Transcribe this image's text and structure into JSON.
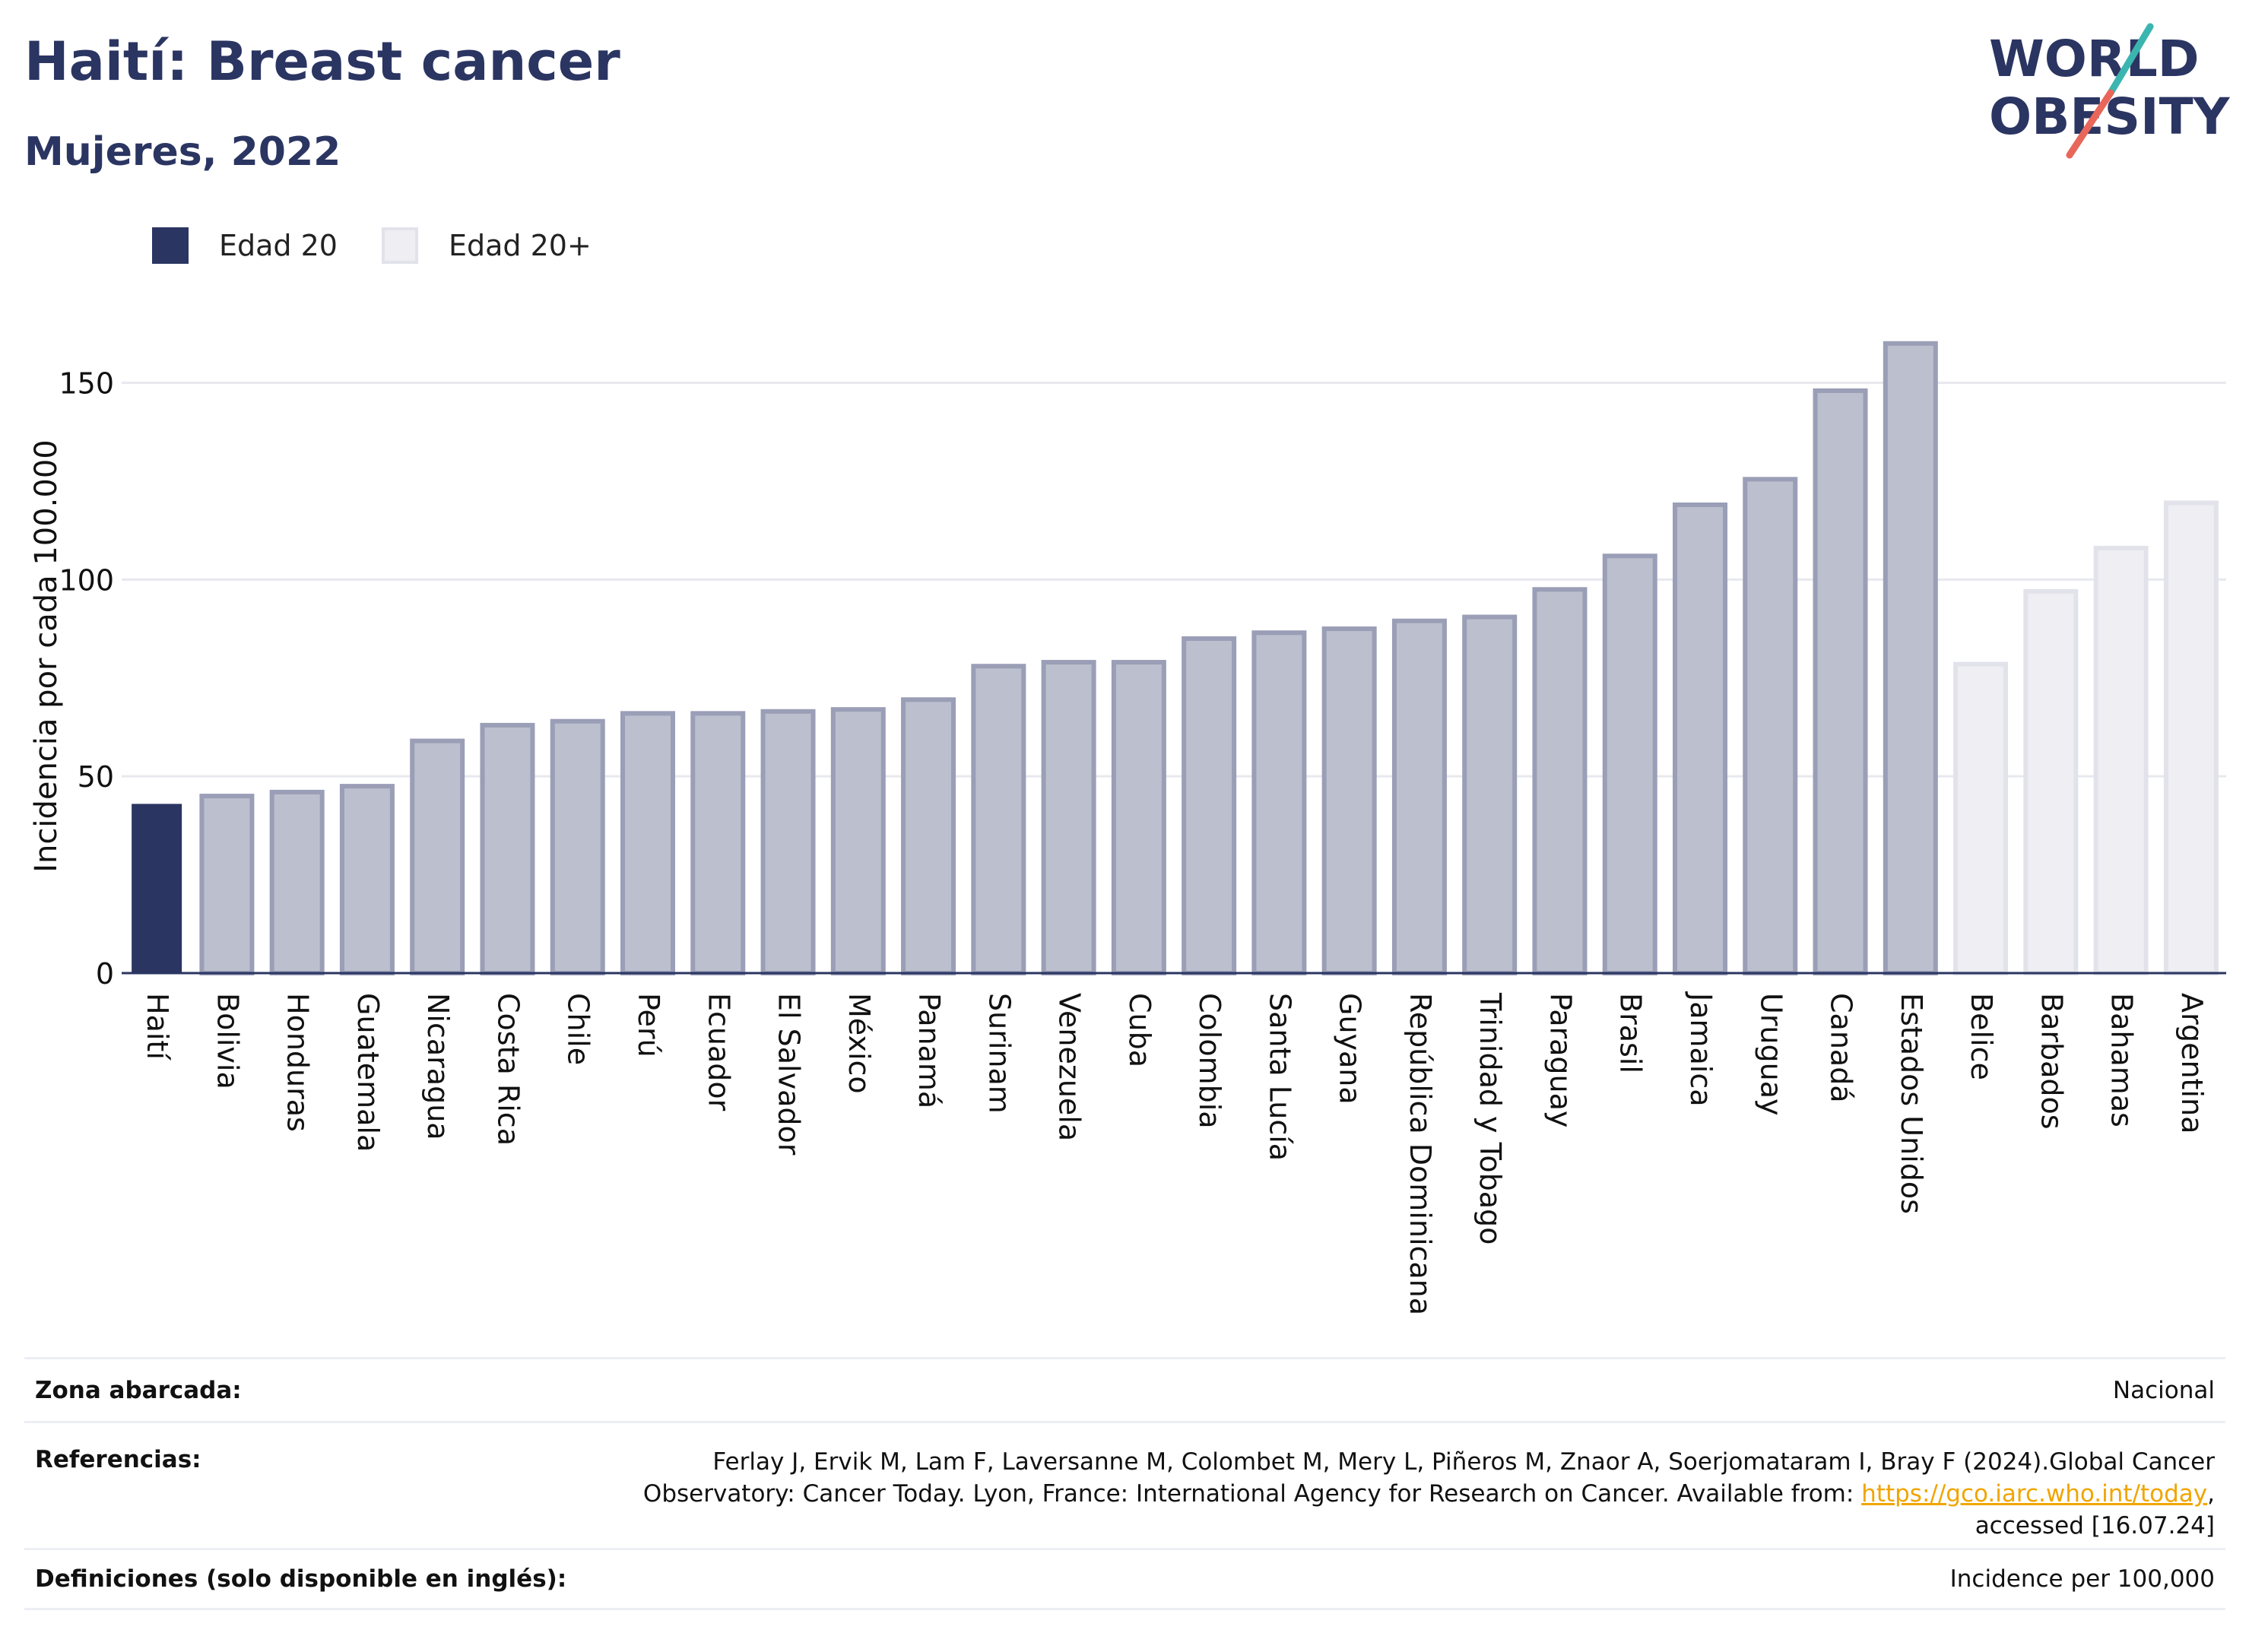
{
  "header": {
    "title": "Haití: Breast cancer",
    "subtitle": "Mujeres, 2022",
    "logo_line1": "WORLD",
    "logo_line2": "OBESITY"
  },
  "legend": {
    "items": [
      {
        "label": "Edad 20",
        "color": "#2b3562"
      },
      {
        "label": "Edad 20+",
        "color": "#eeeef3"
      }
    ]
  },
  "chart_data": {
    "type": "bar",
    "title": "",
    "xlabel": "",
    "ylabel": "Incidencia por cada 100.000",
    "ylim": [
      0,
      170
    ],
    "yticks": [
      0,
      50,
      100,
      150
    ],
    "grid": true,
    "legend_position": "top-left",
    "categories": [
      "Haití",
      "Bolivia",
      "Honduras",
      "Guatemala",
      "Nicaragua",
      "Costa Rica",
      "Chile",
      "Perú",
      "Ecuador",
      "El Salvador",
      "México",
      "Panamá",
      "Surinam",
      "Venezuela",
      "Cuba",
      "Colombia",
      "Santa Lucía",
      "Guyana",
      "República Dominicana",
      "Trinidad y Tobago",
      "Paraguay",
      "Brasil",
      "Jamaica",
      "Uruguay",
      "Canadá",
      "Estados Unidos",
      "Belice",
      "Barbados",
      "Bahamas",
      "Argentina"
    ],
    "values": [
      43,
      45,
      46,
      47.5,
      59,
      63,
      64,
      66,
      66,
      66.5,
      67,
      69.5,
      78,
      79,
      79,
      85,
      86.5,
      87.5,
      89.5,
      90.5,
      97.5,
      106,
      119,
      125.5,
      148,
      160,
      78.5,
      97,
      108,
      119.5
    ],
    "bar_group": [
      "Edad 20",
      "Edad 20",
      "Edad 20",
      "Edad 20",
      "Edad 20",
      "Edad 20",
      "Edad 20",
      "Edad 20",
      "Edad 20",
      "Edad 20",
      "Edad 20",
      "Edad 20",
      "Edad 20",
      "Edad 20",
      "Edad 20",
      "Edad 20",
      "Edad 20",
      "Edad 20",
      "Edad 20",
      "Edad 20",
      "Edad 20",
      "Edad 20",
      "Edad 20",
      "Edad 20",
      "Edad 20",
      "Edad 20",
      "Edad 20+",
      "Edad 20+",
      "Edad 20+",
      "Edad 20+"
    ],
    "highlight": "Haití",
    "colors": {
      "highlight": "#2b3562",
      "edad20_fill": "#bcbfcd",
      "edad20_stroke": "#9a9eb6",
      "edad20plus_fill": "#eeeef3",
      "edad20plus_stroke": "#e2e3ea",
      "grid": "#e8e9ef",
      "axis": "#2b3562"
    }
  },
  "footer": {
    "rows": [
      {
        "label": "Zona abarcada:",
        "value": "Nacional"
      },
      {
        "label": "Referencias:",
        "value_part1": "Ferlay J, Ervik M, Lam F, Laversanne M, Colombet M, Mery L, Piñeros M, Znaor A, Soerjomataram I, Bray F (2024).Global Cancer",
        "value_part2": "Observatory: Cancer Today. Lyon, France: International Agency for Research on Cancer. Available from: ",
        "link": "https://gco.iarc.who.int/today",
        "value_part3": ",",
        "value_part4": "accessed [16.07.24]"
      },
      {
        "label": "Definiciones (solo disponible en inglés):",
        "value": "Incidence per 100,000"
      }
    ]
  }
}
